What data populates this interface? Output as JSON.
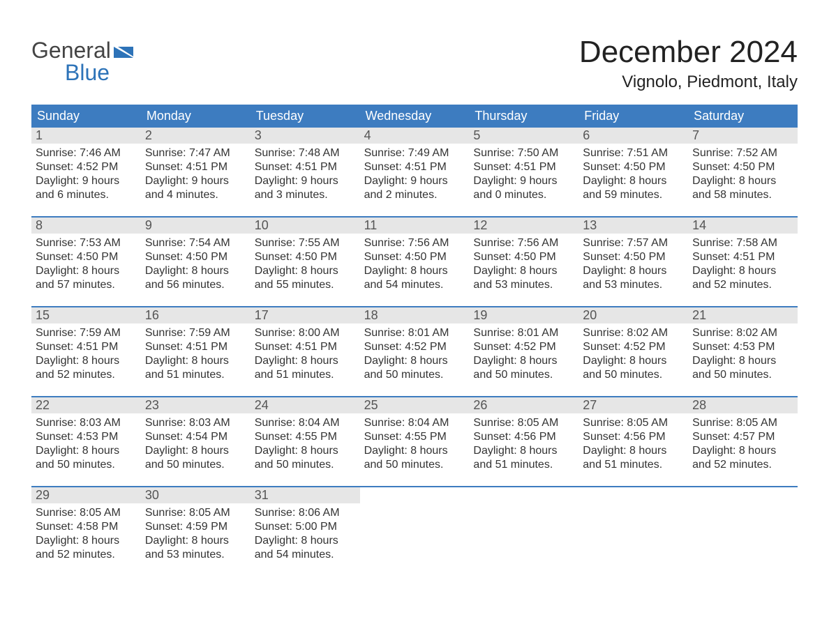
{
  "brand": {
    "word1": "General",
    "word2": "Blue",
    "color": "#2d73b8"
  },
  "title": "December 2024",
  "location": "Vignolo, Piedmont, Italy",
  "colors": {
    "header_bg": "#3d7cc0",
    "header_text": "#ffffff",
    "row_separator": "#3d7cc0",
    "daynum_bg": "#e6e6e6",
    "text": "#333333",
    "page_bg": "#ffffff"
  },
  "dayNames": [
    "Sunday",
    "Monday",
    "Tuesday",
    "Wednesday",
    "Thursday",
    "Friday",
    "Saturday"
  ],
  "labels": {
    "sunrise": "Sunrise",
    "sunset": "Sunset",
    "daylight": "Daylight"
  },
  "weeks": [
    [
      {
        "n": 1,
        "sunrise": "7:46 AM",
        "sunset": "4:52 PM",
        "dl": "9 hours and 6 minutes."
      },
      {
        "n": 2,
        "sunrise": "7:47 AM",
        "sunset": "4:51 PM",
        "dl": "9 hours and 4 minutes."
      },
      {
        "n": 3,
        "sunrise": "7:48 AM",
        "sunset": "4:51 PM",
        "dl": "9 hours and 3 minutes."
      },
      {
        "n": 4,
        "sunrise": "7:49 AM",
        "sunset": "4:51 PM",
        "dl": "9 hours and 2 minutes."
      },
      {
        "n": 5,
        "sunrise": "7:50 AM",
        "sunset": "4:51 PM",
        "dl": "9 hours and 0 minutes."
      },
      {
        "n": 6,
        "sunrise": "7:51 AM",
        "sunset": "4:50 PM",
        "dl": "8 hours and 59 minutes."
      },
      {
        "n": 7,
        "sunrise": "7:52 AM",
        "sunset": "4:50 PM",
        "dl": "8 hours and 58 minutes."
      }
    ],
    [
      {
        "n": 8,
        "sunrise": "7:53 AM",
        "sunset": "4:50 PM",
        "dl": "8 hours and 57 minutes."
      },
      {
        "n": 9,
        "sunrise": "7:54 AM",
        "sunset": "4:50 PM",
        "dl": "8 hours and 56 minutes."
      },
      {
        "n": 10,
        "sunrise": "7:55 AM",
        "sunset": "4:50 PM",
        "dl": "8 hours and 55 minutes."
      },
      {
        "n": 11,
        "sunrise": "7:56 AM",
        "sunset": "4:50 PM",
        "dl": "8 hours and 54 minutes."
      },
      {
        "n": 12,
        "sunrise": "7:56 AM",
        "sunset": "4:50 PM",
        "dl": "8 hours and 53 minutes."
      },
      {
        "n": 13,
        "sunrise": "7:57 AM",
        "sunset": "4:50 PM",
        "dl": "8 hours and 53 minutes."
      },
      {
        "n": 14,
        "sunrise": "7:58 AM",
        "sunset": "4:51 PM",
        "dl": "8 hours and 52 minutes."
      }
    ],
    [
      {
        "n": 15,
        "sunrise": "7:59 AM",
        "sunset": "4:51 PM",
        "dl": "8 hours and 52 minutes."
      },
      {
        "n": 16,
        "sunrise": "7:59 AM",
        "sunset": "4:51 PM",
        "dl": "8 hours and 51 minutes."
      },
      {
        "n": 17,
        "sunrise": "8:00 AM",
        "sunset": "4:51 PM",
        "dl": "8 hours and 51 minutes."
      },
      {
        "n": 18,
        "sunrise": "8:01 AM",
        "sunset": "4:52 PM",
        "dl": "8 hours and 50 minutes."
      },
      {
        "n": 19,
        "sunrise": "8:01 AM",
        "sunset": "4:52 PM",
        "dl": "8 hours and 50 minutes."
      },
      {
        "n": 20,
        "sunrise": "8:02 AM",
        "sunset": "4:52 PM",
        "dl": "8 hours and 50 minutes."
      },
      {
        "n": 21,
        "sunrise": "8:02 AM",
        "sunset": "4:53 PM",
        "dl": "8 hours and 50 minutes."
      }
    ],
    [
      {
        "n": 22,
        "sunrise": "8:03 AM",
        "sunset": "4:53 PM",
        "dl": "8 hours and 50 minutes."
      },
      {
        "n": 23,
        "sunrise": "8:03 AM",
        "sunset": "4:54 PM",
        "dl": "8 hours and 50 minutes."
      },
      {
        "n": 24,
        "sunrise": "8:04 AM",
        "sunset": "4:55 PM",
        "dl": "8 hours and 50 minutes."
      },
      {
        "n": 25,
        "sunrise": "8:04 AM",
        "sunset": "4:55 PM",
        "dl": "8 hours and 50 minutes."
      },
      {
        "n": 26,
        "sunrise": "8:05 AM",
        "sunset": "4:56 PM",
        "dl": "8 hours and 51 minutes."
      },
      {
        "n": 27,
        "sunrise": "8:05 AM",
        "sunset": "4:56 PM",
        "dl": "8 hours and 51 minutes."
      },
      {
        "n": 28,
        "sunrise": "8:05 AM",
        "sunset": "4:57 PM",
        "dl": "8 hours and 52 minutes."
      }
    ],
    [
      {
        "n": 29,
        "sunrise": "8:05 AM",
        "sunset": "4:58 PM",
        "dl": "8 hours and 52 minutes."
      },
      {
        "n": 30,
        "sunrise": "8:05 AM",
        "sunset": "4:59 PM",
        "dl": "8 hours and 53 minutes."
      },
      {
        "n": 31,
        "sunrise": "8:06 AM",
        "sunset": "5:00 PM",
        "dl": "8 hours and 54 minutes."
      },
      null,
      null,
      null,
      null
    ]
  ]
}
